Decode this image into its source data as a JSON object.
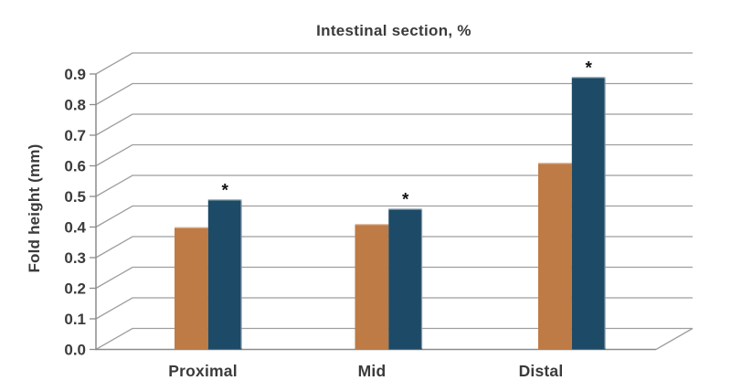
{
  "chart_data": {
    "type": "bar",
    "style": "3d-oblique-grouped-columns",
    "title": "Intestinal section, %",
    "xlabel": "",
    "ylabel": "Fold height (mm)",
    "ylim": [
      0.0,
      0.9
    ],
    "ytick_step": 0.1,
    "yticks": [
      "0.0",
      "0.1",
      "0.2",
      "0.3",
      "0.4",
      "0.5",
      "0.6",
      "0.7",
      "0.8",
      "0.9"
    ],
    "categories": [
      "Proximal",
      "Mid",
      "Distal"
    ],
    "series": [
      {
        "id": "orange",
        "color": "#BE7B45",
        "values": [
          0.4,
          0.41,
          0.61
        ],
        "significance": [
          "",
          "",
          ""
        ]
      },
      {
        "id": "blue",
        "color": "#1D4A66",
        "values": [
          0.49,
          0.46,
          0.89
        ],
        "significance": [
          "*",
          "*",
          "*"
        ]
      }
    ],
    "legend_position": "none",
    "grid": true,
    "grid_color": "#9E9E9E",
    "axis_color": "#8C8C8C",
    "text_color": "#3b3b3b",
    "background_color": "#ffffff"
  }
}
